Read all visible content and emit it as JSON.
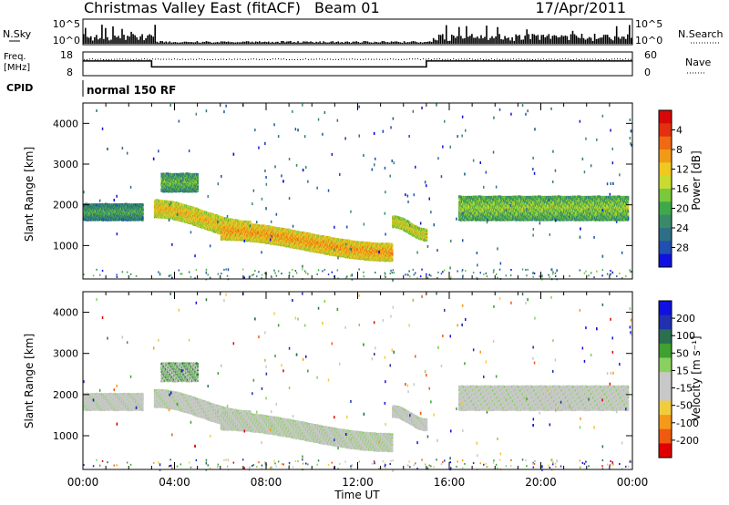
{
  "header": {
    "station": "Christmas Valley East (fitACF)",
    "beam": "Beam 01",
    "date": "17/Apr/2011",
    "cpid_label": "CPID",
    "cpid_value": "normal 150 RF"
  },
  "noise_panel": {
    "left_label": "N.Sky",
    "right_label": "N.Search",
    "left_ticks": [
      "10^5",
      "10^0"
    ],
    "right_ticks": [
      "10^5",
      "10^0"
    ]
  },
  "freq_panel": {
    "left_label_line1": "Freq.",
    "left_label_line2": "[MHz]",
    "right_label": "Nave",
    "left_ticks": [
      "18",
      "8"
    ],
    "right_ticks": [
      "60",
      "0"
    ],
    "freq_steps": [
      {
        "t": 0,
        "mhz": 14.2
      },
      {
        "t": 3.0,
        "mhz": 11.7
      },
      {
        "t": 15.0,
        "mhz": 14.2
      },
      {
        "t": 24,
        "mhz": 14.2
      }
    ]
  },
  "colors": {
    "power": [
      "#1010e0",
      "#2050b0",
      "#2f6f86",
      "#3a8a6a",
      "#3fa84a",
      "#7ac83c",
      "#c8dc30",
      "#f0c820",
      "#f29a18",
      "#ef6a12",
      "#e23010",
      "#d80808"
    ],
    "velocity": [
      "#e00000",
      "#ef5a10",
      "#f59a18",
      "#f2cc40",
      "#c8c8c8",
      "#c8c8c8",
      "#8ad060",
      "#40a030",
      "#2a7050",
      "#2030b0",
      "#1010e0"
    ]
  },
  "chart_data": [
    {
      "type": "heatmap",
      "name": "power",
      "ylabel": "Slant Range [km]",
      "xlabel": "",
      "xlim": [
        0,
        24
      ],
      "ylim": [
        180,
        4500
      ],
      "yticks": [
        1000,
        2000,
        3000,
        4000
      ],
      "x_ticks_hours": [
        0,
        4,
        8,
        12,
        16,
        20,
        24
      ],
      "colorbar": {
        "label": "Power [dB]",
        "range": [
          0,
          32
        ],
        "ticks": [
          "4",
          "8",
          "12",
          "16",
          "20",
          "24",
          "28"
        ]
      },
      "features": [
        {
          "desc": "band",
          "t0": 0.0,
          "t1": 2.6,
          "range_km": [
            1650,
            2050
          ],
          "power_db": 10
        },
        {
          "desc": "arc",
          "t0": 3.1,
          "t1": 7.3,
          "range_km": [
            1200,
            2150
          ],
          "power_db": 20
        },
        {
          "desc": "patch",
          "t0": 3.4,
          "t1": 5.0,
          "range_km": [
            2350,
            2800
          ],
          "power_db": 12
        },
        {
          "desc": "arc",
          "t0": 6.0,
          "t1": 13.5,
          "range_km": [
            650,
            1600
          ],
          "power_db": 22
        },
        {
          "desc": "arc",
          "t0": 13.5,
          "t1": 15.0,
          "range_km": [
            1150,
            1750
          ],
          "power_db": 18
        },
        {
          "desc": "band",
          "t0": 16.4,
          "t1": 23.8,
          "range_km": [
            1650,
            2250
          ],
          "power_db": 14
        }
      ]
    },
    {
      "type": "heatmap",
      "name": "velocity",
      "ylabel": "Slant Range [km]",
      "xlabel": "Time UT",
      "xlim": [
        0,
        24
      ],
      "ylim": [
        180,
        4500
      ],
      "yticks": [
        1000,
        2000,
        3000,
        4000
      ],
      "x_ticks_hours": [
        0,
        4,
        8,
        12,
        16,
        20,
        24
      ],
      "x_tick_labels": [
        "00:00",
        "04:00",
        "08:00",
        "12:00",
        "16:00",
        "20:00",
        "00:00"
      ],
      "colorbar": {
        "label": "Velocity [m s⁻¹]",
        "range": [
          -250,
          250
        ],
        "ticks": [
          "200",
          "100",
          "50",
          "15",
          "-15",
          "-50",
          "-100",
          "-200"
        ]
      },
      "features": [
        {
          "desc": "band",
          "t0": 0.0,
          "t1": 2.6,
          "range_km": [
            1650,
            2050
          ],
          "velocity": 0
        },
        {
          "desc": "arc",
          "t0": 3.1,
          "t1": 7.3,
          "range_km": [
            1200,
            2150
          ],
          "velocity": 0
        },
        {
          "desc": "patch",
          "t0": 3.4,
          "t1": 5.0,
          "range_km": [
            2350,
            2800
          ],
          "velocity": 80
        },
        {
          "desc": "arc",
          "t0": 6.0,
          "t1": 13.5,
          "range_km": [
            650,
            1600
          ],
          "velocity": 10
        },
        {
          "desc": "arc",
          "t0": 13.5,
          "t1": 15.0,
          "range_km": [
            1150,
            1750
          ],
          "velocity": 0
        },
        {
          "desc": "band",
          "t0": 16.4,
          "t1": 23.8,
          "range_km": [
            1650,
            2250
          ],
          "velocity": -10
        }
      ]
    }
  ]
}
